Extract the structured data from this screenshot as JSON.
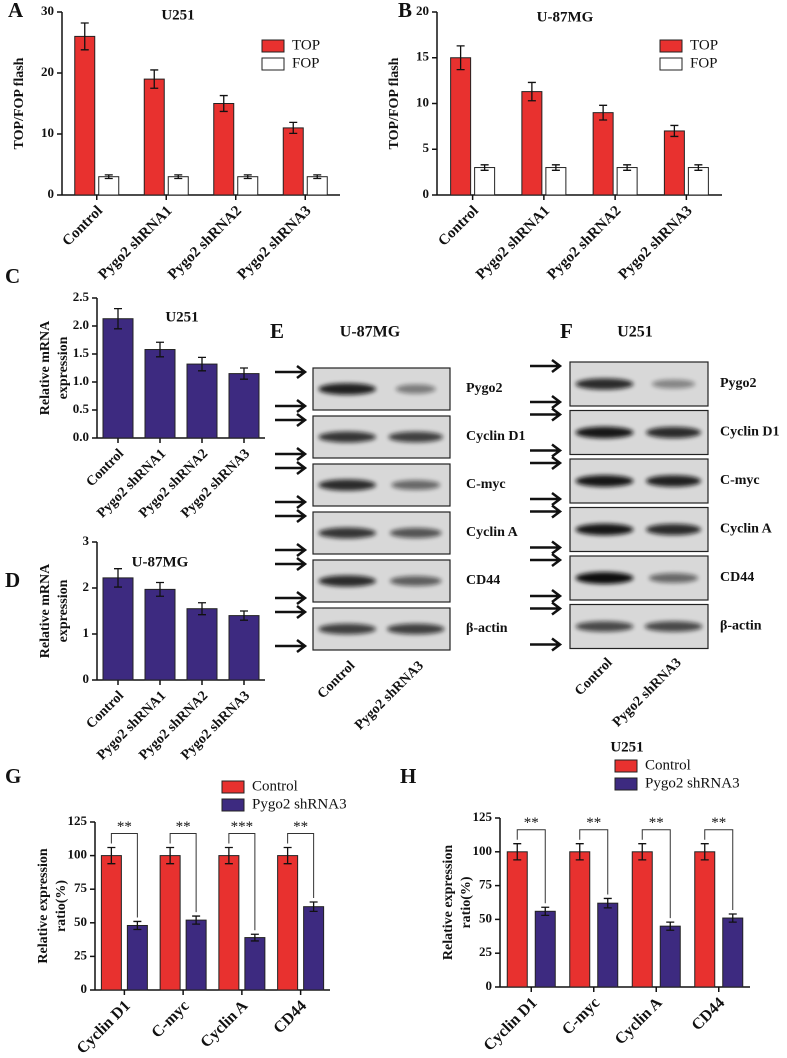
{
  "chart_data": [
    {
      "panel": "A",
      "type": "bar",
      "title": "U251",
      "y_label": [
        "TOP/FOP flash"
      ],
      "legend": "upper right",
      "categories": [
        "Control",
        "Pygo2 shRNA1",
        "Pygo2 shRNA2",
        "Pygo2 shRNA3"
      ],
      "series": [
        {
          "name": "TOP",
          "color": "#e8312f",
          "values": [
            26,
            19,
            15,
            11
          ],
          "errors": [
            2.2,
            1.5,
            1.3,
            0.9
          ]
        },
        {
          "name": "FOP",
          "color": "#ffffff",
          "values": [
            3,
            3,
            3,
            3
          ],
          "errors": [
            0.3,
            0.3,
            0.3,
            0.3
          ]
        }
      ],
      "ylim": [
        0,
        30
      ],
      "yticks": [
        0,
        10,
        20,
        30
      ]
    },
    {
      "panel": "B",
      "type": "bar",
      "title": "U-87MG",
      "y_label": [
        "TOP/FOP flash"
      ],
      "legend": "upper right",
      "categories": [
        "Control",
        "Pygo2 shRNA1",
        "Pygo2 shRNA2",
        "Pygo2 shRNA3"
      ],
      "series": [
        {
          "name": "TOP",
          "color": "#e8312f",
          "values": [
            15,
            11.3,
            9,
            7
          ],
          "errors": [
            1.3,
            1.0,
            0.8,
            0.6
          ]
        },
        {
          "name": "FOP",
          "color": "#ffffff",
          "values": [
            3,
            3,
            3,
            3
          ],
          "errors": [
            0.3,
            0.3,
            0.3,
            0.3
          ]
        }
      ],
      "ylim": [
        0,
        20
      ],
      "yticks": [
        0,
        5,
        10,
        15,
        20
      ]
    },
    {
      "panel": "C",
      "type": "bar",
      "title": "U251",
      "y_label": [
        "Relative mRNA",
        "expression"
      ],
      "categories": [
        "Control",
        "Pygo2 shRNA1",
        "Pygo2 shRNA2",
        "Pygo2 shRNA3"
      ],
      "series": [
        {
          "color": "#3d2a80",
          "values": [
            2.13,
            1.58,
            1.32,
            1.15
          ],
          "errors": [
            0.18,
            0.13,
            0.12,
            0.1
          ]
        }
      ],
      "ylim": [
        0,
        2.5
      ],
      "yticks": [
        {
          "value": 0,
          "label": "0.0"
        },
        0.5,
        {
          "value": 1,
          "label": "1.0"
        },
        1.5,
        {
          "value": 2,
          "label": "2.0"
        },
        2.5
      ]
    },
    {
      "panel": "D",
      "type": "bar",
      "title": "U-87MG",
      "y_label": [
        "Relative mRNA",
        "expression"
      ],
      "categories": [
        "Control",
        "Pygo2 shRNA1",
        "Pygo2 shRNA2",
        "Pygo2 shRNA3"
      ],
      "series": [
        {
          "color": "#3d2a80",
          "values": [
            2.22,
            1.97,
            1.55,
            1.4
          ],
          "errors": [
            0.2,
            0.15,
            0.13,
            0.1
          ]
        }
      ],
      "ylim": [
        0,
        3
      ],
      "yticks": [
        0,
        1,
        2,
        3
      ]
    },
    {
      "panel": "G",
      "type": "bar",
      "y_label": [
        "Relative expression",
        "ratio(%)"
      ],
      "legend": "top",
      "categories": [
        "Cyclin D1",
        "C-myc",
        "Cyclin A",
        "CD44"
      ],
      "series": [
        {
          "name": "Control",
          "color": "#e8312f",
          "values": [
            100,
            100,
            100,
            100
          ],
          "errors": [
            6,
            6,
            6,
            6
          ]
        },
        {
          "name": "Pygo2 shRNA3",
          "color": "#3d2a80",
          "values": [
            48,
            52,
            39,
            62
          ],
          "errors": [
            3,
            3,
            2.5,
            3.5
          ]
        }
      ],
      "significance": [
        "**",
        "**",
        "***",
        "**"
      ],
      "ylim": [
        0,
        125
      ],
      "yticks": [
        0,
        25,
        50,
        75,
        100,
        125
      ]
    },
    {
      "panel": "H",
      "type": "bar",
      "title": "U251",
      "y_label": [
        "Relative expression",
        "ratio(%)"
      ],
      "legend": "top",
      "categories": [
        "Cyclin D1",
        "C-myc",
        "Cyclin A",
        "CD44"
      ],
      "series": [
        {
          "name": "Control",
          "color": "#e8312f",
          "values": [
            100,
            100,
            100,
            100
          ],
          "errors": [
            6,
            6,
            6,
            6
          ]
        },
        {
          "name": "Pygo2 shRNA3",
          "color": "#3d2a80",
          "values": [
            56,
            62,
            45,
            51
          ],
          "errors": [
            3,
            3.5,
            3,
            3
          ]
        }
      ],
      "significance": [
        "**",
        "**",
        "**",
        "**"
      ],
      "ylim": [
        0,
        125
      ],
      "yticks": [
        0,
        25,
        50,
        75,
        100,
        125
      ]
    }
  ],
  "blots": [
    {
      "panel": "E",
      "title": "U-87MG",
      "rows": [
        "Pygo2",
        "Cyclin D1",
        "C-myc",
        "Cyclin A",
        "CD44",
        "β-actin"
      ],
      "lanes": [
        "Control",
        "Pygo2 shRNA3"
      ]
    },
    {
      "panel": "F",
      "title": "U251",
      "rows": [
        "Pygo2",
        "Cyclin D1",
        "C-myc",
        "Cyclin A",
        "CD44",
        "β-actin"
      ],
      "lanes": [
        "Control",
        "Pygo2 shRNA3"
      ]
    }
  ]
}
